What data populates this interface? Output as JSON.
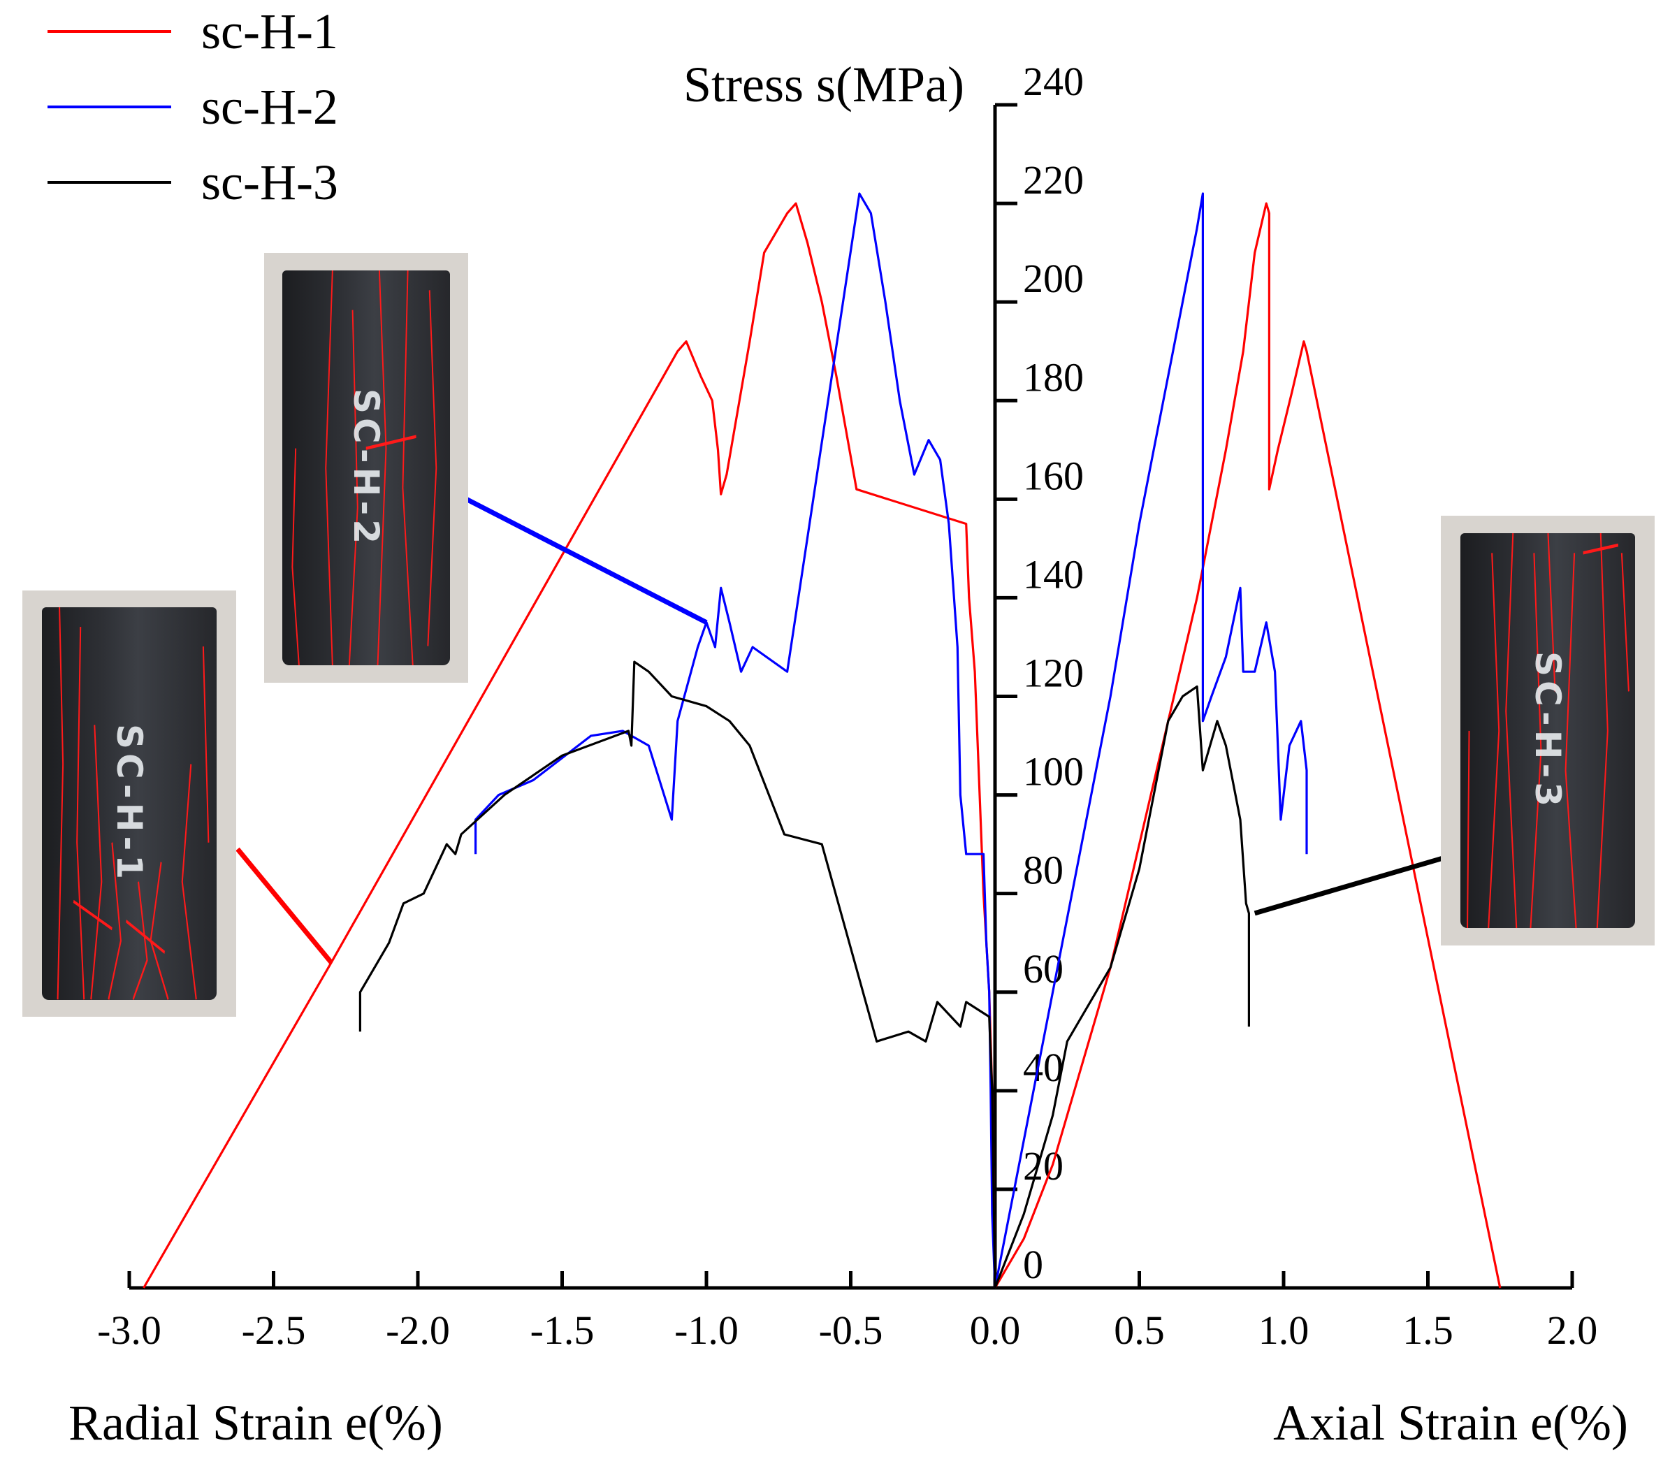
{
  "chart_data": {
    "type": "line",
    "title": "",
    "y_axis": {
      "label": "Stress s(MPa)",
      "range": [
        0,
        240
      ],
      "ticks": [
        0,
        20,
        40,
        60,
        80,
        100,
        120,
        140,
        160,
        180,
        200,
        220,
        240
      ]
    },
    "x_axis": {
      "range": [
        -3.0,
        2.0
      ],
      "ticks": [
        -3.0,
        -2.5,
        -2.0,
        -1.5,
        -1.0,
        -0.5,
        0.0,
        0.5,
        1.0,
        1.5,
        2.0
      ],
      "tick_labels": [
        "-3.0",
        "-2.5",
        "-2.0",
        "-1.5",
        "-1.0",
        "-0.5",
        "0.0",
        "0.5",
        "1.0",
        "1.5",
        "2.0"
      ]
    },
    "xlabel_left": "Radial Strain e(%)",
    "xlabel_right": "Axial Strain e(%)",
    "legend_position": "top-left",
    "grid": false,
    "series": [
      {
        "name": "sc-H-1",
        "color": "#ff0000",
        "radial": [
          [
            0.0,
            0
          ],
          [
            -0.005,
            20
          ],
          [
            -0.01,
            40
          ],
          [
            -0.02,
            60
          ],
          [
            -0.04,
            80
          ],
          [
            -0.05,
            95
          ],
          [
            -0.07,
            125
          ],
          [
            -0.09,
            140
          ],
          [
            -0.1,
            155
          ],
          [
            -0.48,
            162
          ],
          [
            -0.55,
            185
          ],
          [
            -0.6,
            200
          ],
          [
            -0.65,
            212
          ],
          [
            -0.69,
            220
          ],
          [
            -0.72,
            218
          ],
          [
            -0.8,
            210
          ],
          [
            -0.85,
            192
          ],
          [
            -0.93,
            165
          ],
          [
            -0.95,
            161
          ],
          [
            -0.96,
            170
          ],
          [
            -0.98,
            180
          ],
          [
            -1.02,
            185
          ],
          [
            -1.07,
            192
          ],
          [
            -1.1,
            190
          ],
          [
            -2.3,
            66
          ],
          [
            -2.95,
            0
          ]
        ],
        "axial": [
          [
            0.0,
            0
          ],
          [
            0.1,
            10
          ],
          [
            0.2,
            25
          ],
          [
            0.3,
            45
          ],
          [
            0.4,
            65
          ],
          [
            0.5,
            90
          ],
          [
            0.6,
            115
          ],
          [
            0.7,
            140
          ],
          [
            0.8,
            170
          ],
          [
            0.86,
            190
          ],
          [
            0.9,
            210
          ],
          [
            0.94,
            220
          ],
          [
            0.95,
            218
          ],
          [
            0.95,
            162
          ],
          [
            0.98,
            170
          ],
          [
            1.03,
            182
          ],
          [
            1.07,
            192
          ],
          [
            1.08,
            190
          ],
          [
            1.75,
            0
          ]
        ]
      },
      {
        "name": "sc-H-2",
        "color": "#0000ff",
        "radial": [
          [
            0.0,
            0
          ],
          [
            -0.01,
            15
          ],
          [
            -0.015,
            40
          ],
          [
            -0.02,
            60
          ],
          [
            -0.03,
            70
          ],
          [
            -0.04,
            88
          ],
          [
            -0.1,
            88
          ],
          [
            -0.12,
            100
          ],
          [
            -0.13,
            130
          ],
          [
            -0.16,
            155
          ],
          [
            -0.19,
            168
          ],
          [
            -0.23,
            172
          ],
          [
            -0.28,
            165
          ],
          [
            -0.33,
            180
          ],
          [
            -0.38,
            200
          ],
          [
            -0.43,
            218
          ],
          [
            -0.47,
            222
          ],
          [
            -0.72,
            125
          ],
          [
            -0.84,
            130
          ],
          [
            -0.88,
            125
          ],
          [
            -0.92,
            135
          ],
          [
            -0.95,
            142
          ],
          [
            -0.97,
            130
          ],
          [
            -1.0,
            135
          ],
          [
            -1.03,
            130
          ],
          [
            -1.1,
            115
          ],
          [
            -1.12,
            95
          ],
          [
            -1.2,
            110
          ],
          [
            -1.29,
            113
          ],
          [
            -1.4,
            112
          ],
          [
            -1.6,
            103
          ],
          [
            -1.72,
            100
          ],
          [
            -1.8,
            95
          ],
          [
            -1.8,
            88
          ]
        ],
        "axial": [
          [
            0.0,
            0
          ],
          [
            0.1,
            30
          ],
          [
            0.2,
            60
          ],
          [
            0.3,
            90
          ],
          [
            0.4,
            120
          ],
          [
            0.5,
            155
          ],
          [
            0.55,
            170
          ],
          [
            0.6,
            185
          ],
          [
            0.65,
            200
          ],
          [
            0.7,
            215
          ],
          [
            0.72,
            222
          ],
          [
            0.72,
            115
          ],
          [
            0.75,
            120
          ],
          [
            0.8,
            128
          ],
          [
            0.85,
            142
          ],
          [
            0.86,
            125
          ],
          [
            0.9,
            125
          ],
          [
            0.94,
            135
          ],
          [
            0.97,
            125
          ],
          [
            0.99,
            95
          ],
          [
            1.02,
            110
          ],
          [
            1.06,
            115
          ],
          [
            1.08,
            105
          ],
          [
            1.08,
            88
          ]
        ]
      },
      {
        "name": "sc-H-3",
        "color": "#000000",
        "radial": [
          [
            0.0,
            0
          ],
          [
            -0.005,
            20
          ],
          [
            -0.01,
            40
          ],
          [
            -0.02,
            55
          ],
          [
            -0.1,
            58
          ],
          [
            -0.12,
            53
          ],
          [
            -0.2,
            58
          ],
          [
            -0.24,
            50
          ],
          [
            -0.3,
            52
          ],
          [
            -0.41,
            50
          ],
          [
            -0.6,
            90
          ],
          [
            -0.73,
            92
          ],
          [
            -0.85,
            110
          ],
          [
            -0.92,
            115
          ],
          [
            -1.0,
            118
          ],
          [
            -1.12,
            120
          ],
          [
            -1.2,
            125
          ],
          [
            -1.25,
            127
          ],
          [
            -1.26,
            110
          ],
          [
            -1.27,
            113
          ],
          [
            -1.5,
            108
          ],
          [
            -1.7,
            100
          ],
          [
            -1.85,
            92
          ],
          [
            -1.87,
            88
          ],
          [
            -1.9,
            90
          ],
          [
            -1.98,
            80
          ],
          [
            -2.05,
            78
          ],
          [
            -2.1,
            70
          ],
          [
            -2.2,
            60
          ],
          [
            -2.2,
            52
          ]
        ],
        "axial": [
          [
            0.0,
            0
          ],
          [
            0.1,
            15
          ],
          [
            0.2,
            35
          ],
          [
            0.25,
            50
          ],
          [
            0.3,
            55
          ],
          [
            0.4,
            65
          ],
          [
            0.5,
            85
          ],
          [
            0.6,
            115
          ],
          [
            0.65,
            120
          ],
          [
            0.7,
            122
          ],
          [
            0.72,
            105
          ],
          [
            0.77,
            115
          ],
          [
            0.8,
            110
          ],
          [
            0.85,
            95
          ],
          [
            0.87,
            78
          ],
          [
            0.88,
            76
          ],
          [
            0.88,
            53
          ]
        ]
      }
    ]
  },
  "legend": [
    {
      "label": "sc-H-1",
      "color": "#ff0000"
    },
    {
      "label": "sc-H-2",
      "color": "#0000ff"
    },
    {
      "label": "sc-H-3",
      "color": "#000000"
    }
  ],
  "photos": [
    {
      "label": "SC-H-1",
      "leader_color": "#ff0000"
    },
    {
      "label": "SC-H-2",
      "leader_color": "#0000ff"
    },
    {
      "label": "SC-H-3",
      "leader_color": "#000000"
    }
  ]
}
